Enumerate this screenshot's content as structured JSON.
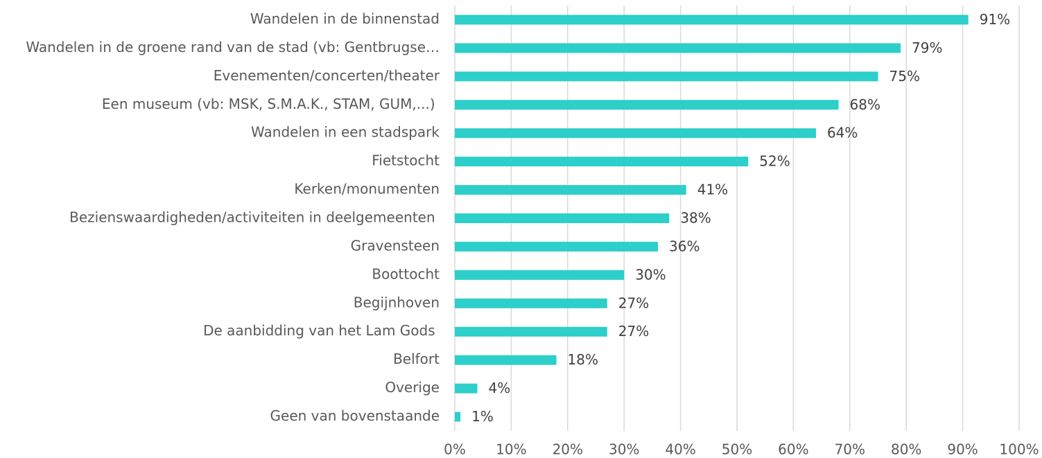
{
  "chart_data": {
    "type": "bar",
    "orientation": "horizontal",
    "categories": [
      "Wandelen in de binnenstad",
      "Wandelen in de groene rand van de stad (vb: Gentbrugse…",
      "Evenementen/concerten/theater",
      "Een museum (vb: MSK, S.M.A.K., STAM, GUM,...) ",
      "Wandelen in een stadspark",
      "Fietstocht",
      "Kerken/monumenten",
      "Bezienswaardigheden/activiteiten in deelgemeenten ",
      "Gravensteen",
      "Boottocht",
      "Begijnhoven",
      "De aanbidding van het Lam Gods ",
      "Belfort",
      "Overige",
      "Geen van bovenstaande"
    ],
    "values": [
      91,
      79,
      75,
      68,
      64,
      52,
      41,
      38,
      36,
      30,
      27,
      27,
      18,
      4,
      1
    ],
    "value_labels": [
      "91%",
      "79%",
      "75%",
      "68%",
      "64%",
      "52%",
      "41%",
      "38%",
      "36%",
      "30%",
      "27%",
      "27%",
      "18%",
      "4%",
      "1%"
    ],
    "color": "#2ccfc9",
    "xlim": [
      0,
      100
    ],
    "xticks": [
      {
        "value": 0,
        "label": "0%"
      },
      {
        "value": 10,
        "label": "10%"
      },
      {
        "value": 20,
        "label": "20%"
      },
      {
        "value": 30,
        "label": "30%"
      },
      {
        "value": 40,
        "label": "40%"
      },
      {
        "value": 50,
        "label": "50%"
      },
      {
        "value": 60,
        "label": "60%"
      },
      {
        "value": 70,
        "label": "70%"
      },
      {
        "value": 80,
        "label": "80%"
      },
      {
        "value": 90,
        "label": "90%"
      },
      {
        "value": 100,
        "label": "100%"
      }
    ],
    "grid": true
  }
}
